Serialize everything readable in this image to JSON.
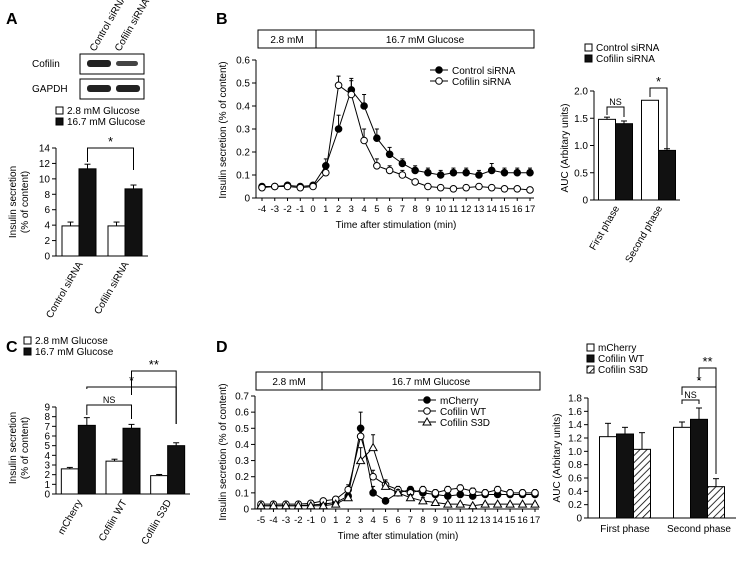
{
  "panel_labels": {
    "a": "A",
    "b": "B",
    "c": "C",
    "d": "D"
  },
  "blot": {
    "lanes": [
      "Control siRNA",
      "Cofilin siRNA"
    ],
    "rows": [
      "Cofilin",
      "GAPDH"
    ]
  },
  "condition_bars": {
    "basal_label": "2.8 mM",
    "stim_label": "16.7 mM Glucose"
  },
  "chart_data": [
    {
      "id": "A",
      "type": "bar",
      "legend": [
        "2.8 mM Glucose",
        "16.7 mM Glucose"
      ],
      "categories": [
        "Control siRNA",
        "Cofilin siRNA"
      ],
      "series": [
        {
          "name": "2.8 mM Glucose",
          "values": [
            3.9,
            3.9
          ],
          "errors": [
            0.5,
            0.5
          ]
        },
        {
          "name": "16.7 mM Glucose",
          "values": [
            11.3,
            8.7
          ],
          "errors": [
            0.6,
            0.5
          ]
        }
      ],
      "ylabel": "Insulin secretion\n(% of content)",
      "ylim": [
        0,
        14
      ],
      "yticks": [
        "0",
        "2",
        "4",
        "6",
        "8",
        "10",
        "12",
        "14"
      ],
      "significance": [
        "*"
      ]
    },
    {
      "id": "B-line",
      "type": "line",
      "x": [
        -4,
        -3,
        -2,
        -1,
        0,
        1,
        2,
        3,
        4,
        5,
        6,
        7,
        8,
        9,
        10,
        11,
        12,
        13,
        14,
        15,
        16,
        17
      ],
      "xticks": [
        "-4",
        "-3",
        "-2",
        "-1",
        "0",
        "1",
        "2",
        "3",
        "4",
        "5",
        "6",
        "7",
        "8",
        "9",
        "10",
        "11",
        "12",
        "13",
        "14",
        "15",
        "16",
        "17"
      ],
      "series": [
        {
          "name": "Control siRNA",
          "marker": "filled-circle",
          "values": [
            0.05,
            0.05,
            0.055,
            0.05,
            0.055,
            0.14,
            0.3,
            0.47,
            0.4,
            0.26,
            0.19,
            0.15,
            0.12,
            0.11,
            0.1,
            0.11,
            0.11,
            0.1,
            0.12,
            0.11,
            0.11,
            0.11
          ],
          "errors": [
            0.01,
            0.01,
            0.01,
            0.01,
            0.01,
            0.03,
            0.06,
            0.05,
            0.05,
            0.04,
            0.03,
            0.02,
            0.02,
            0.02,
            0.02,
            0.02,
            0.02,
            0.02,
            0.03,
            0.02,
            0.02,
            0.02
          ]
        },
        {
          "name": "Cofilin siRNA",
          "marker": "open-circle",
          "values": [
            0.045,
            0.05,
            0.05,
            0.045,
            0.05,
            0.11,
            0.49,
            0.45,
            0.25,
            0.14,
            0.12,
            0.1,
            0.07,
            0.05,
            0.045,
            0.04,
            0.045,
            0.05,
            0.045,
            0.04,
            0.04,
            0.035
          ],
          "errors": [
            0.01,
            0.01,
            0.01,
            0.01,
            0.01,
            0.02,
            0.04,
            0.06,
            0.05,
            0.03,
            0.02,
            0.02,
            0.01,
            0.01,
            0.01,
            0.01,
            0.01,
            0.01,
            0.01,
            0.01,
            0.01,
            0.01
          ]
        }
      ],
      "xlabel": "Time after stimulation (min)",
      "ylabel": "Insulin secretion (% of content)",
      "ylim": [
        0,
        0.6
      ],
      "yticks": [
        "0",
        "0.1",
        "0.2",
        "0.3",
        "0.4",
        "0.5",
        "0.6"
      ]
    },
    {
      "id": "B-auc",
      "type": "bar",
      "legend": [
        "Control siRNA",
        "Cofilin siRNA"
      ],
      "categories": [
        "First phase",
        "Second phase"
      ],
      "series": [
        {
          "name": "Control siRNA",
          "values": [
            1.48,
            1.83
          ],
          "errors": [
            0.04,
            0.0
          ]
        },
        {
          "name": "Cofilin siRNA",
          "values": [
            1.4,
            0.91
          ],
          "errors": [
            0.05,
            0.03
          ]
        }
      ],
      "ylabel": "AUC (Arbitary units)",
      "ylim": [
        0,
        2.0
      ],
      "yticks": [
        "0",
        "0.5",
        "1.0",
        "1.5",
        "2.0"
      ],
      "significance": [
        "NS",
        "*"
      ]
    },
    {
      "id": "C",
      "type": "bar",
      "legend": [
        "2.8 mM Glucose",
        "16.7 mM Glucose"
      ],
      "categories": [
        "mCherry",
        "Cofilin WT",
        "Cofilin S3D"
      ],
      "series": [
        {
          "name": "2.8 mM Glucose",
          "values": [
            2.6,
            3.4,
            1.9
          ],
          "errors": [
            0.15,
            0.2,
            0.12
          ]
        },
        {
          "name": "16.7 mM Glucose",
          "values": [
            7.1,
            6.8,
            5.0
          ],
          "errors": [
            0.8,
            0.4,
            0.3
          ]
        }
      ],
      "ylabel": "Insulin secretion\n(% of content)",
      "ylim": [
        0,
        9
      ],
      "yticks": [
        "0",
        "1",
        "2",
        "3",
        "4",
        "5",
        "6",
        "7",
        "8",
        "9"
      ],
      "significance": [
        "NS",
        "*",
        "**"
      ]
    },
    {
      "id": "D-line",
      "type": "line",
      "x": [
        -5,
        -4,
        -3,
        -2,
        -1,
        0,
        1,
        2,
        3,
        4,
        5,
        6,
        7,
        8,
        9,
        10,
        11,
        12,
        13,
        14,
        15,
        16,
        17
      ],
      "xticks": [
        "-5",
        "-4",
        "-3",
        "-2",
        "-1",
        "0",
        "1",
        "2",
        "3",
        "4",
        "5",
        "6",
        "7",
        "8",
        "9",
        "10",
        "11",
        "12",
        "13",
        "14",
        "15",
        "16",
        "17"
      ],
      "series": [
        {
          "name": "mCherry",
          "marker": "filled-circle",
          "values": [
            0.02,
            0.02,
            0.02,
            0.02,
            0.025,
            0.03,
            0.04,
            0.08,
            0.5,
            0.1,
            0.05,
            0.1,
            0.12,
            0.1,
            0.09,
            0.08,
            0.09,
            0.08,
            0.09,
            0.09,
            0.09,
            0.09,
            0.09
          ],
          "errors": [
            0.01,
            0.01,
            0.01,
            0.01,
            0.01,
            0.01,
            0.01,
            0.03,
            0.1,
            0.04,
            0.02,
            0.02,
            0.02,
            0.02,
            0.02,
            0.02,
            0.02,
            0.02,
            0.02,
            0.02,
            0.02,
            0.02,
            0.02
          ]
        },
        {
          "name": "Cofilin WT",
          "marker": "open-circle",
          "values": [
            0.03,
            0.03,
            0.03,
            0.03,
            0.035,
            0.05,
            0.06,
            0.12,
            0.45,
            0.2,
            0.15,
            0.12,
            0.1,
            0.12,
            0.1,
            0.12,
            0.13,
            0.11,
            0.1,
            0.12,
            0.1,
            0.1,
            0.1
          ],
          "errors": [
            0.01,
            0.01,
            0.01,
            0.01,
            0.01,
            0.01,
            0.01,
            0.03,
            0.06,
            0.04,
            0.03,
            0.02,
            0.02,
            0.02,
            0.02,
            0.02,
            0.02,
            0.02,
            0.02,
            0.02,
            0.02,
            0.02,
            0.02
          ]
        },
        {
          "name": "Cofilin S3D",
          "marker": "open-triangle",
          "values": [
            0.02,
            0.02,
            0.02,
            0.02,
            0.02,
            0.02,
            0.03,
            0.07,
            0.3,
            0.38,
            0.14,
            0.1,
            0.07,
            0.05,
            0.04,
            0.03,
            0.03,
            0.02,
            0.03,
            0.03,
            0.03,
            0.03,
            0.03
          ],
          "errors": [
            0.01,
            0.01,
            0.01,
            0.01,
            0.01,
            0.01,
            0.01,
            0.02,
            0.08,
            0.08,
            0.04,
            0.02,
            0.02,
            0.02,
            0.01,
            0.01,
            0.01,
            0.01,
            0.01,
            0.01,
            0.01,
            0.01,
            0.01
          ]
        }
      ],
      "xlabel": "Time after stimulation (min)",
      "ylabel": "Insulin secretion (% of content)",
      "ylim": [
        0,
        0.7
      ],
      "yticks": [
        "0",
        "0.1",
        "0.2",
        "0.3",
        "0.4",
        "0.5",
        "0.6",
        "0.7"
      ]
    },
    {
      "id": "D-auc",
      "type": "bar",
      "legend": [
        "mCherry",
        "Cofilin WT",
        "Cofilin S3D"
      ],
      "categories": [
        "First phase",
        "Second phase"
      ],
      "series": [
        {
          "name": "mCherry",
          "values": [
            1.22,
            1.36
          ],
          "errors": [
            0.2,
            0.08
          ]
        },
        {
          "name": "Cofilin WT",
          "values": [
            1.26,
            1.48
          ],
          "errors": [
            0.1,
            0.17
          ]
        },
        {
          "name": "Cofilin S3D",
          "values": [
            1.03,
            0.47
          ],
          "errors": [
            0.25,
            0.12
          ]
        }
      ],
      "ylabel": "AUC (Arbitary units)",
      "ylim": [
        0,
        1.8
      ],
      "yticks": [
        "0",
        "0.2",
        "0.4",
        "0.6",
        "0.8",
        "1.0",
        "1.2",
        "1.4",
        "1.6",
        "1.8"
      ],
      "significance": [
        "NS",
        "*",
        "**"
      ]
    }
  ]
}
